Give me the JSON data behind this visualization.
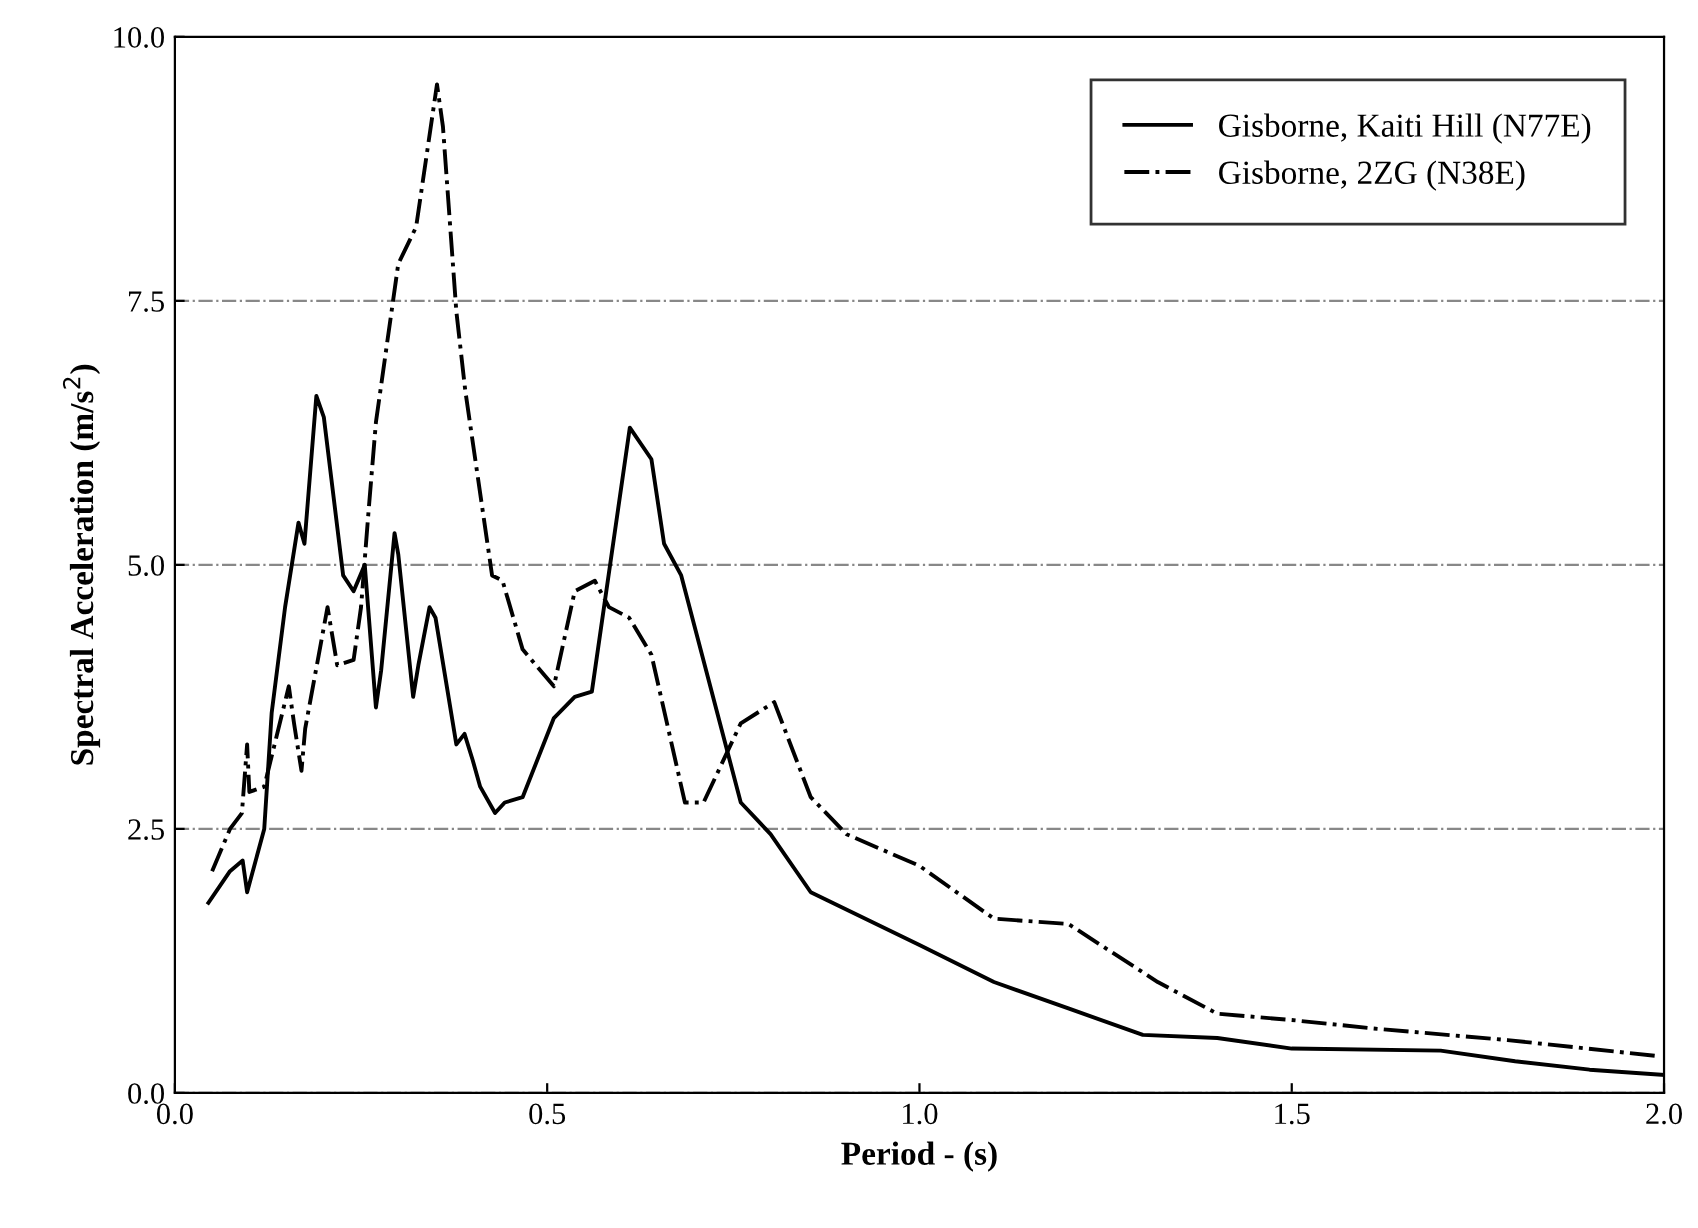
{
  "chart_data": {
    "type": "line",
    "xlabel": "Period - (s)",
    "ylabel": "Spectral Acceleration (m/s$^{2}$)",
    "xlim": [
      0.0,
      2.0
    ],
    "xticks": [
      {
        "value": 0,
        "label": "0.0"
      },
      0.5,
      {
        "value": 1,
        "label": "1.0"
      },
      1.5,
      {
        "value": 2,
        "label": "2.0"
      }
    ],
    "ylim": [
      0.0,
      10.0
    ],
    "yticks": [
      {
        "value": 0,
        "label": "0.0"
      },
      2.5,
      {
        "value": 5,
        "label": "5.0"
      },
      7.5,
      {
        "value": 10,
        "label": "10.0"
      }
    ],
    "grid": "y",
    "legend": "top right",
    "series": [
      {
        "name": "Gisborne, Kaiti Hill (N77E)",
        "color": "#000000",
        "line_style": "solid",
        "x": [
          0.045,
          0.074,
          0.091,
          0.097,
          0.12,
          0.13,
          0.148,
          0.166,
          0.174,
          0.19,
          0.2,
          0.226,
          0.24,
          0.255,
          0.27,
          0.277,
          0.295,
          0.3,
          0.32,
          0.327,
          0.342,
          0.35,
          0.378,
          0.389,
          0.4,
          0.41,
          0.43,
          0.443,
          0.467,
          0.509,
          0.537,
          0.56,
          0.611,
          0.64,
          0.657,
          0.68,
          0.76,
          0.8,
          0.854,
          1.0,
          1.1,
          1.2,
          1.3,
          1.4,
          1.5,
          1.7,
          1.8,
          1.9,
          2.0
        ],
        "values": [
          1.8,
          2.1,
          2.2,
          1.9,
          2.5,
          3.6,
          4.6,
          5.4,
          5.2,
          6.6,
          6.4,
          4.9,
          4.75,
          5.0,
          3.65,
          4.0,
          5.3,
          5.1,
          3.75,
          4.05,
          4.6,
          4.5,
          3.3,
          3.4,
          3.15,
          2.9,
          2.65,
          2.75,
          2.8,
          3.55,
          3.75,
          3.8,
          6.3,
          6.0,
          5.2,
          4.9,
          2.75,
          2.45,
          1.9,
          1.4,
          1.05,
          0.8,
          0.55,
          0.52,
          0.42,
          0.4,
          0.3,
          0.22,
          0.17
        ]
      },
      {
        "name": "Gisborne, 2ZG (N38E)",
        "color": "#000000",
        "line_style": "dashdot",
        "x": [
          0.05,
          0.074,
          0.09,
          0.097,
          0.1,
          0.12,
          0.153,
          0.16,
          0.17,
          0.175,
          0.205,
          0.218,
          0.24,
          0.25,
          0.26,
          0.27,
          0.282,
          0.3,
          0.324,
          0.352,
          0.36,
          0.378,
          0.39,
          0.426,
          0.44,
          0.467,
          0.509,
          0.537,
          0.564,
          0.583,
          0.61,
          0.64,
          0.685,
          0.71,
          0.76,
          0.805,
          0.854,
          0.902,
          1.0,
          1.1,
          1.2,
          1.32,
          1.4,
          1.5,
          1.61,
          1.79,
          1.99
        ],
        "values": [
          2.1,
          2.5,
          2.65,
          3.3,
          2.85,
          2.9,
          3.85,
          3.5,
          3.05,
          3.45,
          4.6,
          4.05,
          4.1,
          4.6,
          5.5,
          6.35,
          6.95,
          7.85,
          8.2,
          9.55,
          9.15,
          7.4,
          6.65,
          4.9,
          4.85,
          4.2,
          3.85,
          4.75,
          4.85,
          4.6,
          4.5,
          4.15,
          2.75,
          2.75,
          3.5,
          3.7,
          2.8,
          2.45,
          2.15,
          1.65,
          1.6,
          1.05,
          0.75,
          0.69,
          0.61,
          0.5,
          0.35
        ]
      }
    ]
  }
}
